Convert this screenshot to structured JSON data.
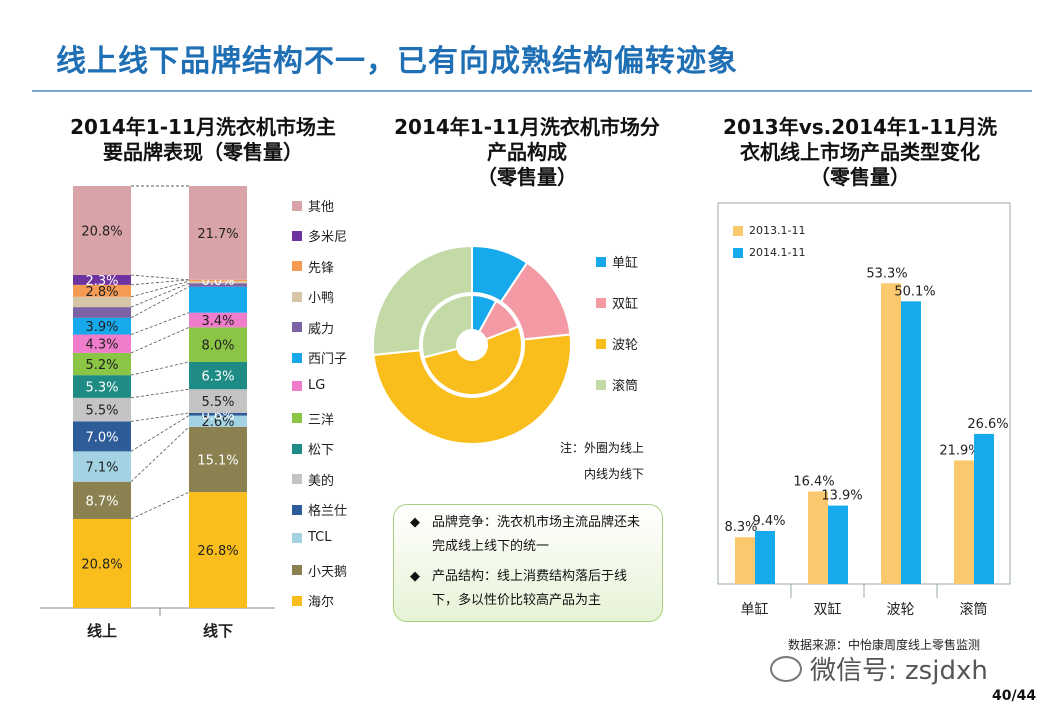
{
  "page_title": "线上线下品牌结构不一，已有向成熟结构偏转迹象",
  "note": {
    "items": [
      {
        "bullet": "◆",
        "text": "品牌竞争：洗衣机市场主流品牌还未完成线上线下的统一"
      },
      {
        "bullet": "◆",
        "text": "产品结构：线上消费结构落后于线下，多以性价比较高产品为主"
      }
    ]
  },
  "source": "数据来源：中怡康周度线上零售监测",
  "watermark": "微信号: zsjdxh",
  "page_number": "40/44",
  "chart_data": [
    {
      "type": "bar",
      "stacked": true,
      "title": "2014年1-11月洗衣机市场主要品牌表现（零售量）",
      "title_lines": [
        "2014年1-11月洗衣机市场主",
        "要品牌表现（零售量）"
      ],
      "categories": [
        "线上",
        "线下"
      ],
      "series": [
        {
          "name": "海尔",
          "color": "#f9be1c",
          "values": [
            20.8,
            26.8
          ],
          "labels": [
            "20.8%",
            "26.8%"
          ]
        },
        {
          "name": "小天鹅",
          "color": "#8b8150",
          "values": [
            8.7,
            15.1
          ],
          "labels": [
            "8.7%",
            "15.1%"
          ]
        },
        {
          "name": "TCL",
          "color": "#a3d2e2",
          "values": [
            7.1,
            2.6
          ],
          "labels": [
            "7.1%",
            "2.6%"
          ]
        },
        {
          "name": "格兰仕",
          "color": "#2e5c99",
          "values": [
            7.0,
            0.6
          ],
          "labels": [
            "7.0%",
            "0.6%"
          ]
        },
        {
          "name": "美的",
          "color": "#c4c4c4",
          "values": [
            5.5,
            5.5
          ],
          "labels": [
            "5.5%",
            "5.5%"
          ]
        },
        {
          "name": "松下",
          "color": "#1e8c84",
          "values": [
            5.3,
            6.3
          ],
          "labels": [
            "5.3%",
            "6.3%"
          ]
        },
        {
          "name": "三洋",
          "color": "#8ac546",
          "values": [
            5.2,
            8.0
          ],
          "labels": [
            "5.2%",
            "8.0%"
          ]
        },
        {
          "name": "LG",
          "color": "#f07ccc",
          "values": [
            4.3,
            3.4
          ],
          "labels": [
            "4.3%",
            "3.4%"
          ]
        },
        {
          "name": "西门子",
          "color": "#16a9ec",
          "values": [
            3.9,
            6.0
          ],
          "labels": [
            "3.9%",
            ""
          ]
        },
        {
          "name": "威力",
          "color": "#7a62a4",
          "values": [
            2.5,
            0.8
          ],
          "labels": [
            "",
            ""
          ]
        },
        {
          "name": "小鸭",
          "color": "#d7c6a6",
          "values": [
            2.4,
            0.5
          ],
          "labels": [
            "",
            ""
          ]
        },
        {
          "name": "先锋",
          "color": "#f59a52",
          "values": [
            2.8,
            0.3
          ],
          "labels": [
            "2.8%",
            ""
          ]
        },
        {
          "name": "多米尼",
          "color": "#6f33a0",
          "values": [
            2.3,
            0.0
          ],
          "labels": [
            "2.3%",
            "0.0%"
          ]
        },
        {
          "name": "其他",
          "color": "#d9a4a8",
          "values": [
            20.8,
            21.7
          ],
          "labels": [
            "20.8%",
            "21.7%"
          ]
        }
      ],
      "legend_order": [
        "其他",
        "多米尼",
        "先锋",
        "小鸭",
        "威力",
        "西门子",
        "LG",
        "三洋",
        "松下",
        "美的",
        "格兰仕",
        "TCL",
        "小天鹅",
        "海尔"
      ]
    },
    {
      "type": "pie",
      "donut": true,
      "title": "2014年1-11月洗衣机市场分产品构成（零售量）",
      "title_lines": [
        "2014年1-11月洗衣机市场分",
        "产品构成",
        "（零售量）"
      ],
      "categories": [
        "单缸",
        "双缸",
        "波轮",
        "滚筒"
      ],
      "colors": [
        "#16a9ec",
        "#f49aa4",
        "#f9be1c",
        "#c3d9a6"
      ],
      "series": [
        {
          "name": "外圈 线上",
          "values": [
            9.4,
            13.9,
            50.1,
            26.6
          ]
        },
        {
          "name": "内圈 线下",
          "values": [
            8.0,
            11.0,
            52.0,
            29.0
          ]
        }
      ],
      "annotation_lines": [
        "注：外圈为线上",
        "内线为线下"
      ]
    },
    {
      "type": "bar",
      "title": "2013年vs.2014年1-11月洗衣机线上市场产品类型变化（零售量）",
      "title_lines": [
        "2013年vs.2014年1-11月洗",
        "衣机线上市场产品类型变化",
        "（零售量）"
      ],
      "categories": [
        "单缸",
        "双缸",
        "波轮",
        "滚筒"
      ],
      "series": [
        {
          "name": "2013.1-11",
          "color": "#fbc96d",
          "values": [
            8.3,
            16.4,
            53.3,
            21.9
          ],
          "labels": [
            "8.3%",
            "16.4%",
            "53.3%",
            "21.9%"
          ]
        },
        {
          "name": "2014.1-11",
          "color": "#16a9ec",
          "values": [
            9.4,
            13.9,
            50.1,
            26.6
          ],
          "labels": [
            "9.4%",
            "13.9%",
            "50.1%",
            "26.6%"
          ]
        }
      ],
      "ylim": [
        0,
        60
      ]
    }
  ]
}
